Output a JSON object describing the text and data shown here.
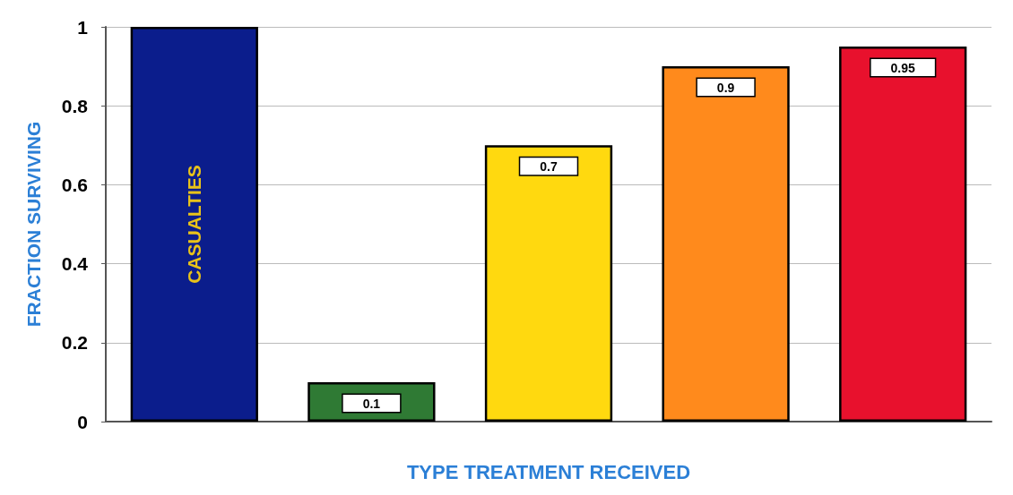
{
  "chart_data": {
    "type": "bar",
    "xlabel": "TYPE TREATMENT RECEIVED",
    "ylabel": "FRACTION SURVIVING",
    "categories": [
      "CASUALTIES",
      null,
      null,
      null,
      null
    ],
    "values": [
      1,
      0.1,
      0.7,
      0.9,
      0.95
    ],
    "value_labels": [
      null,
      "0.1",
      "0.7",
      "0.9",
      "0.95"
    ],
    "colors": [
      "#0b1d8c",
      "#2f7a34",
      "#ffd90f",
      "#ff8a1c",
      "#e8112d"
    ],
    "ylim": [
      0,
      1
    ],
    "yticks": [
      0,
      0.2,
      0.4,
      0.6,
      0.8,
      1
    ],
    "grid": "y"
  }
}
